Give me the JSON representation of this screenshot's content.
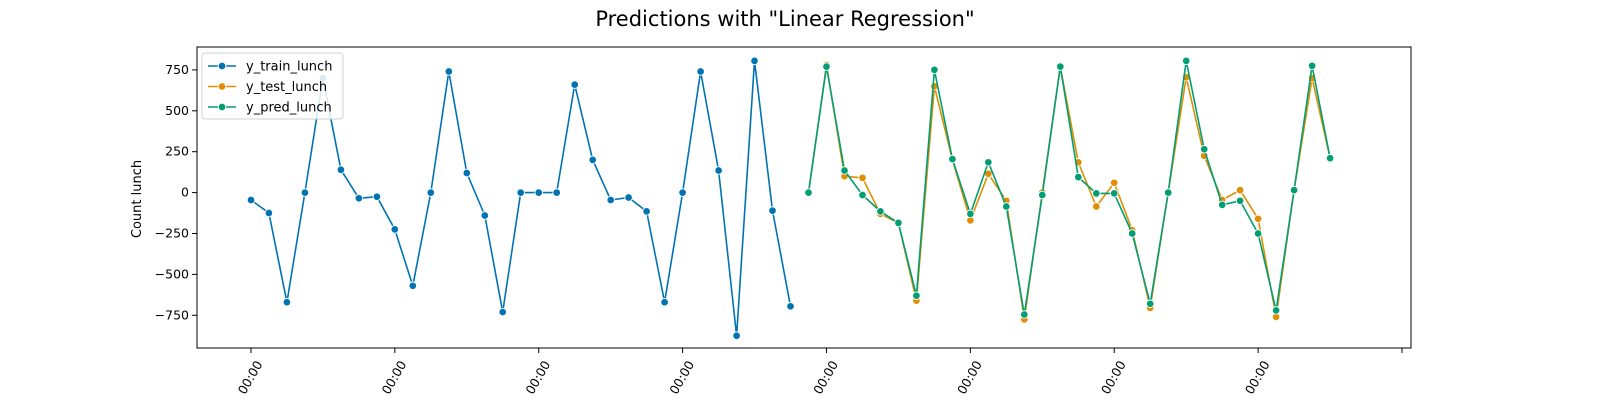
{
  "chart_data": {
    "type": "line",
    "title": "Predictions with \"Linear Regression\"",
    "xlabel": "",
    "ylabel": "Count lunch",
    "ylim": [
      -950,
      890
    ],
    "xlim": [
      -3,
      64.5
    ],
    "yticks": [
      750,
      500,
      250,
      0,
      -250,
      -500,
      -750
    ],
    "xticks": [
      0,
      8,
      16,
      24,
      32,
      40,
      48,
      56,
      64
    ],
    "xtick_labels": [
      "00:00",
      "00:00",
      "00:00",
      "00:00",
      "00:00",
      "00:00",
      "00:00",
      "00:00",
      ""
    ],
    "grid": false,
    "legend_position": "top-left",
    "series": [
      {
        "name": "y_train_lunch",
        "color": "#0173b2",
        "points": [
          [
            0,
            -45
          ],
          [
            1,
            -125
          ],
          [
            2,
            -670
          ],
          [
            3,
            0
          ],
          [
            4,
            700
          ],
          [
            5,
            140
          ],
          [
            6,
            -35
          ],
          [
            7,
            -25
          ],
          [
            8,
            -225
          ],
          [
            9,
            -570
          ],
          [
            10,
            0
          ],
          [
            11,
            740
          ],
          [
            12,
            120
          ],
          [
            13,
            -140
          ],
          [
            14,
            -730
          ],
          [
            15,
            0
          ],
          [
            16,
            0
          ],
          [
            17,
            0
          ],
          [
            18,
            660
          ],
          [
            19,
            200
          ],
          [
            20,
            -45
          ],
          [
            21,
            -30
          ],
          [
            22,
            -115
          ],
          [
            23,
            -670
          ],
          [
            24,
            0
          ],
          [
            25,
            740
          ],
          [
            26,
            135
          ],
          [
            27,
            -875
          ],
          [
            28,
            805
          ],
          [
            29,
            -110
          ],
          [
            30,
            -695
          ]
        ]
      },
      {
        "name": "y_test_lunch",
        "color": "#de8f05",
        "points": [
          [
            31,
            0
          ],
          [
            32,
            780
          ],
          [
            33,
            100
          ],
          [
            34,
            90
          ],
          [
            35,
            -130
          ],
          [
            36,
            -185
          ],
          [
            37,
            -660
          ],
          [
            38,
            650
          ],
          [
            39,
            200
          ],
          [
            40,
            -170
          ],
          [
            41,
            115
          ],
          [
            42,
            -50
          ],
          [
            43,
            -775
          ],
          [
            44,
            0
          ],
          [
            45,
            770
          ],
          [
            46,
            185
          ],
          [
            47,
            -85
          ],
          [
            48,
            60
          ],
          [
            49,
            -230
          ],
          [
            50,
            -705
          ],
          [
            51,
            0
          ],
          [
            52,
            705
          ],
          [
            53,
            225
          ],
          [
            54,
            -45
          ],
          [
            55,
            15
          ],
          [
            56,
            -160
          ],
          [
            57,
            -760
          ],
          [
            58,
            15
          ],
          [
            59,
            700
          ],
          [
            60,
            210
          ]
        ]
      },
      {
        "name": "y_pred_lunch",
        "color": "#029e73",
        "points": [
          [
            31,
            0
          ],
          [
            32,
            770
          ],
          [
            33,
            135
          ],
          [
            34,
            -15
          ],
          [
            35,
            -115
          ],
          [
            36,
            -185
          ],
          [
            37,
            -630
          ],
          [
            38,
            750
          ],
          [
            39,
            205
          ],
          [
            40,
            -130
          ],
          [
            41,
            185
          ],
          [
            42,
            -85
          ],
          [
            43,
            -745
          ],
          [
            44,
            -15
          ],
          [
            45,
            770
          ],
          [
            46,
            95
          ],
          [
            47,
            -5
          ],
          [
            48,
            -5
          ],
          [
            49,
            -250
          ],
          [
            50,
            -680
          ],
          [
            51,
            0
          ],
          [
            52,
            805
          ],
          [
            53,
            265
          ],
          [
            54,
            -75
          ],
          [
            55,
            -50
          ],
          [
            56,
            -250
          ],
          [
            57,
            -720
          ],
          [
            58,
            15
          ],
          [
            59,
            775
          ],
          [
            60,
            210
          ]
        ]
      }
    ]
  }
}
